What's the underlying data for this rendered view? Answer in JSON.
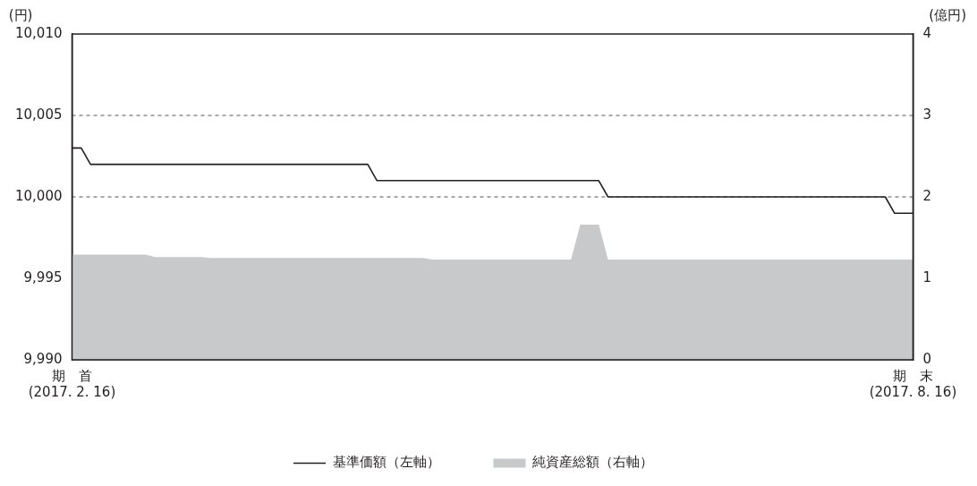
{
  "chart_data": {
    "type": "line",
    "ylabel": "(円)",
    "y2label": "(億円)",
    "categories": [
      "期　首\n(2017. 2. 16)",
      null,
      null,
      null,
      null,
      null,
      null,
      null,
      null,
      null,
      null,
      null,
      null,
      null,
      null,
      null,
      null,
      null,
      null,
      null,
      null,
      null,
      null,
      null,
      null,
      null,
      null,
      null,
      null,
      null,
      null,
      null,
      null,
      null,
      null,
      null,
      null,
      null,
      null,
      null,
      null,
      null,
      null,
      null,
      null,
      null,
      null,
      null,
      null,
      null,
      null,
      null,
      null,
      null,
      null,
      null,
      null,
      null,
      null,
      null,
      null,
      null,
      null,
      null,
      null,
      null,
      null,
      null,
      null,
      null,
      null,
      null,
      null,
      null,
      null,
      null,
      null,
      null,
      null,
      null,
      null,
      null,
      null,
      null,
      null,
      null,
      null,
      null,
      null,
      null,
      null,
      "期　末\n(2017. 8. 16)"
    ],
    "ylim": [
      9990,
      10010
    ],
    "yticks": [
      {
        "value": 9990,
        "label": "9,990"
      },
      {
        "value": 9995,
        "label": "9,995"
      },
      {
        "value": 10000,
        "label": "10,000"
      },
      {
        "value": 10005,
        "label": "10,005"
      },
      {
        "value": 10010,
        "label": "10,010"
      }
    ],
    "y2lim": [
      0,
      4
    ],
    "y2ticks": [
      0,
      1,
      2,
      3,
      4
    ],
    "grid": "y",
    "legend": "bottom",
    "marker": "none",
    "line_style": "solid",
    "series": [
      {
        "name": "基準価額（左軸）",
        "type": "line",
        "color": "#231f20",
        "values": [
          10003,
          10003,
          10002,
          10002,
          10002,
          10002,
          10002,
          10002,
          10002,
          10002,
          10002,
          10002,
          10002,
          10002,
          10002,
          10002,
          10002,
          10002,
          10002,
          10002,
          10002,
          10002,
          10002,
          10002,
          10002,
          10002,
          10002,
          10002,
          10002,
          10002,
          10002,
          10002,
          10002,
          10001,
          10001,
          10001,
          10001,
          10001,
          10001,
          10001,
          10001,
          10001,
          10001,
          10001,
          10001,
          10001,
          10001,
          10001,
          10001,
          10001,
          10001,
          10001,
          10001,
          10001,
          10001,
          10001,
          10001,
          10001,
          10000,
          10000,
          10000,
          10000,
          10000,
          10000,
          10000,
          10000,
          10000,
          10000,
          10000,
          10000,
          10000,
          10000,
          10000,
          10000,
          10000,
          10000,
          10000,
          10000,
          10000,
          10000,
          10000,
          10000,
          10000,
          10000,
          10000,
          10000,
          10000,
          10000,
          10000,
          9999,
          9999,
          9999
        ]
      },
      {
        "name": "純資産総額（右軸）",
        "type": "area",
        "axis": "y2",
        "color": "#c8c9cb",
        "values": [
          1.29,
          1.29,
          1.29,
          1.29,
          1.29,
          1.29,
          1.29,
          1.29,
          1.29,
          1.26,
          1.26,
          1.26,
          1.26,
          1.26,
          1.26,
          1.25,
          1.25,
          1.25,
          1.25,
          1.25,
          1.25,
          1.25,
          1.25,
          1.25,
          1.25,
          1.25,
          1.25,
          1.25,
          1.25,
          1.25,
          1.25,
          1.25,
          1.25,
          1.25,
          1.25,
          1.25,
          1.25,
          1.25,
          1.25,
          1.23,
          1.23,
          1.23,
          1.23,
          1.23,
          1.23,
          1.23,
          1.23,
          1.23,
          1.23,
          1.23,
          1.23,
          1.23,
          1.23,
          1.23,
          1.23,
          1.66,
          1.66,
          1.66,
          1.23,
          1.23,
          1.23,
          1.23,
          1.23,
          1.23,
          1.23,
          1.23,
          1.23,
          1.23,
          1.23,
          1.23,
          1.23,
          1.23,
          1.23,
          1.23,
          1.23,
          1.23,
          1.23,
          1.23,
          1.23,
          1.23,
          1.23,
          1.23,
          1.23,
          1.23,
          1.23,
          1.23,
          1.23,
          1.23,
          1.23,
          1.23,
          1.23,
          1.23
        ]
      }
    ]
  }
}
